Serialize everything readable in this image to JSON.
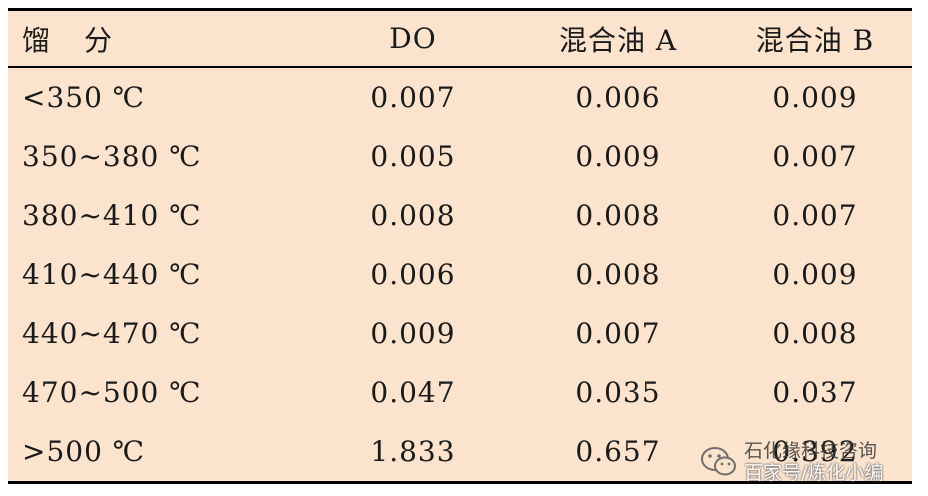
{
  "table": {
    "headers": [
      "馏分",
      "DO",
      "混合油 A",
      "混合油 B"
    ],
    "rows": [
      [
        "<350 ℃",
        "0.007",
        "0.006",
        "0.009"
      ],
      [
        "350~380 ℃",
        "0.005",
        "0.009",
        "0.007"
      ],
      [
        "380~410 ℃",
        "0.008",
        "0.008",
        "0.007"
      ],
      [
        "410~440 ℃",
        "0.006",
        "0.008",
        "0.009"
      ],
      [
        "440~470 ℃",
        "0.009",
        "0.007",
        "0.008"
      ],
      [
        "470~500 ℃",
        "0.047",
        "0.035",
        "0.037"
      ],
      [
        ">500 ℃",
        "1.833",
        "0.657",
        "0.392"
      ]
    ]
  },
  "watermark": {
    "icon": "wechat-icon",
    "line1": "石化缘科技咨询",
    "line2": "百家号/炼化小编"
  },
  "colors": {
    "panel_background": "#fbe3cd",
    "rule": "#000000"
  }
}
